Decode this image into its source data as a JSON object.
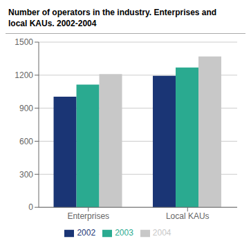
{
  "chart_data": {
    "type": "bar",
    "title": "Number of operators in the industry. Enterprises and\nlocal KAUs. 2002-2004",
    "categories": [
      "Enterprises",
      "Local KAUs"
    ],
    "series": [
      {
        "name": "2002",
        "color": "#1a3575",
        "values": [
          1005,
          1195
        ]
      },
      {
        "name": "2003",
        "color": "#2aaa90",
        "values": [
          1115,
          1270
        ]
      },
      {
        "name": "2004",
        "color": "#c8c8c8",
        "values": [
          1210,
          1370
        ]
      }
    ],
    "ylim": [
      0,
      1500
    ],
    "yticks": [
      0,
      300,
      600,
      900,
      1200,
      1500
    ],
    "grid": true,
    "legend": "bottom"
  }
}
